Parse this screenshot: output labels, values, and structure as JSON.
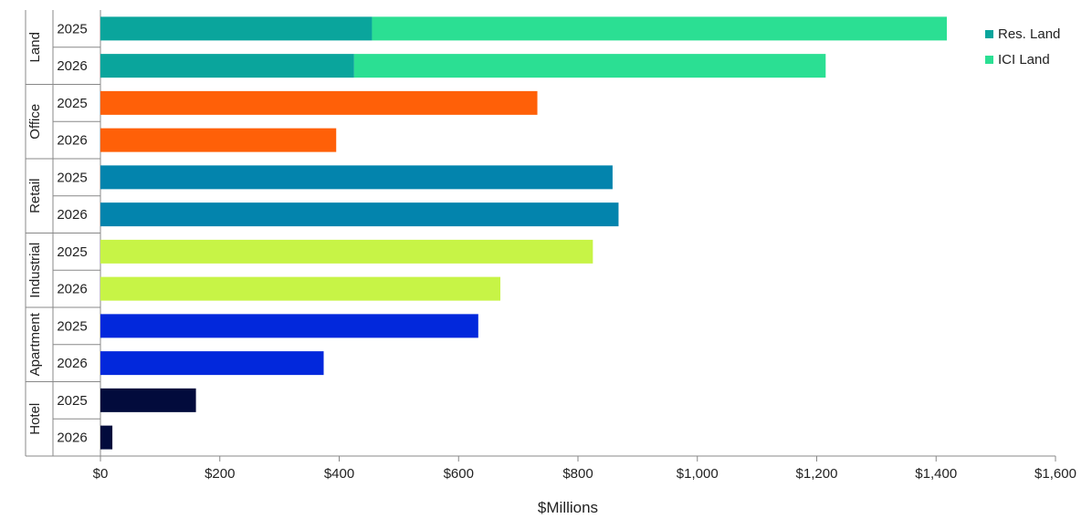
{
  "chart_data": {
    "type": "bar",
    "orientation": "horizontal",
    "stacked": true,
    "xlabel": "$Millions",
    "xlim": [
      0,
      1600
    ],
    "x_ticks": [
      "$0",
      "$200",
      "$400",
      "$600",
      "$800",
      "$1,000",
      "$1,200",
      "$1,400",
      "$1,600"
    ],
    "grid": false,
    "legend_position": "top-right",
    "groups": [
      {
        "name": "Land",
        "rows": [
          {
            "year": "2025",
            "segments": [
              {
                "series": "Res. Land",
                "value": 455
              },
              {
                "series": "ICI Land",
                "value": 963
              }
            ]
          },
          {
            "year": "2026",
            "segments": [
              {
                "series": "Res. Land",
                "value": 425
              },
              {
                "series": "ICI Land",
                "value": 790
              }
            ]
          }
        ]
      },
      {
        "name": "Office",
        "rows": [
          {
            "year": "2025",
            "segments": [
              {
                "series": "Office",
                "value": 732
              }
            ]
          },
          {
            "year": "2026",
            "segments": [
              {
                "series": "Office",
                "value": 395
              }
            ]
          }
        ]
      },
      {
        "name": "Retail",
        "rows": [
          {
            "year": "2025",
            "segments": [
              {
                "series": "Retail",
                "value": 858
              }
            ]
          },
          {
            "year": "2026",
            "segments": [
              {
                "series": "Retail",
                "value": 868
              }
            ]
          }
        ]
      },
      {
        "name": "Industrial",
        "rows": [
          {
            "year": "2025",
            "segments": [
              {
                "series": "Industrial",
                "value": 825
              }
            ]
          },
          {
            "year": "2026",
            "segments": [
              {
                "series": "Industrial",
                "value": 670
              }
            ]
          }
        ]
      },
      {
        "name": "Apartment",
        "rows": [
          {
            "year": "2025",
            "segments": [
              {
                "series": "Apartment",
                "value": 633
              }
            ]
          },
          {
            "year": "2026",
            "segments": [
              {
                "series": "Apartment",
                "value": 374
              }
            ]
          }
        ]
      },
      {
        "name": "Hotel",
        "rows": [
          {
            "year": "2025",
            "segments": [
              {
                "series": "Hotel",
                "value": 160
              }
            ]
          },
          {
            "year": "2026",
            "segments": [
              {
                "series": "Hotel",
                "value": 20
              }
            ]
          }
        ]
      }
    ],
    "series_colors": {
      "Res. Land": "#0aa59c",
      "ICI Land": "#2bdf93",
      "Office": "#ff6008",
      "Retail": "#0384ad",
      "Industrial": "#c7f446",
      "Apartment": "#0228dc",
      "Hotel": "#020b3c"
    },
    "legend": [
      {
        "label": "Res. Land",
        "color": "#0aa59c"
      },
      {
        "label": "ICI Land",
        "color": "#2bdf93"
      }
    ]
  }
}
